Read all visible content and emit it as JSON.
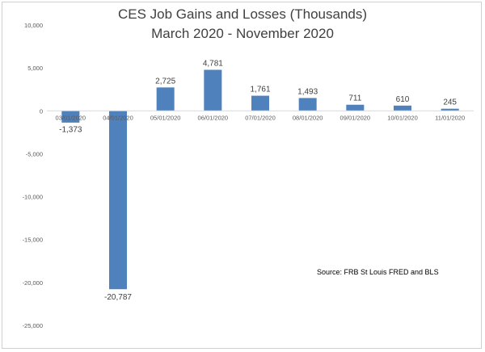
{
  "chart_data": {
    "type": "bar",
    "title": "CES Job Gains and Losses (Thousands)",
    "subtitle": "March 2020 - November 2020",
    "categories": [
      "03/01/2020",
      "04/01/2020",
      "05/01/2020",
      "06/01/2020",
      "07/01/2020",
      "08/01/2020",
      "09/01/2020",
      "10/01/2020",
      "11/01/2020"
    ],
    "values": [
      -1373,
      -20787,
      2725,
      4781,
      1761,
      1493,
      711,
      610,
      245
    ],
    "data_labels": [
      "-1,373",
      "-20,787",
      "2,725",
      "4,781",
      "1,761",
      "1,493",
      "711",
      "610",
      "245"
    ],
    "ylim": [
      -25000,
      10000
    ],
    "yticks": [
      10000,
      5000,
      0,
      -5000,
      -10000,
      -15000,
      -20000,
      -25000
    ],
    "ytick_labels": [
      "10,000",
      "5,000",
      "0",
      "-5,000",
      "-10,000",
      "-15,000",
      "-20,000",
      "-25,000"
    ],
    "bar_color": "#4f81bd",
    "grid": false,
    "legend": "none",
    "annotation": "Source: FRB St Louis FRED and BLS"
  }
}
